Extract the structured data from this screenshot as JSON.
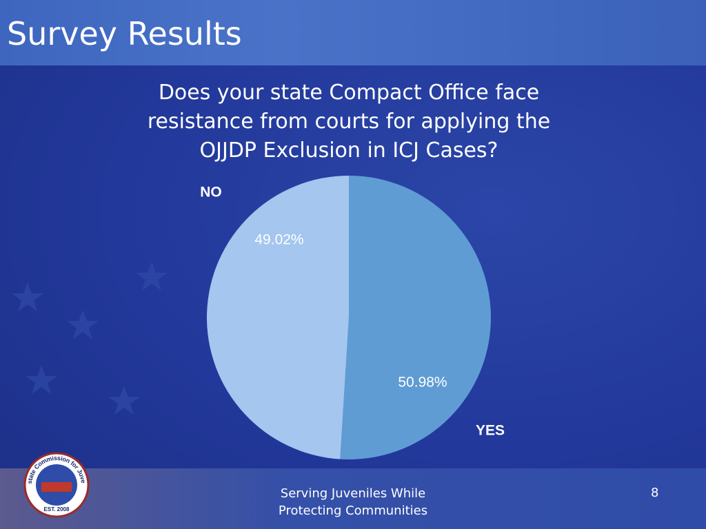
{
  "slide": {
    "title": "Survey Results",
    "footer": "Serving Juveniles While Protecting Communities",
    "page_number": 8,
    "logo": {
      "name": "Interstate Commission for Juveniles",
      "established": "EST. 2008"
    }
  },
  "chart_data": {
    "type": "pie",
    "title": "Does your state Compact Office face resistance from courts for applying the OJJDP Exclusion in ICJ Cases?",
    "categories": [
      "YES",
      "NO"
    ],
    "values": [
      50.98,
      49.02
    ],
    "value_labels": [
      "50.98%",
      "49.02%"
    ],
    "colors": [
      "#5f9cd4",
      "#a4c6ef"
    ],
    "start_angle": 0,
    "direction": "clockwise"
  }
}
